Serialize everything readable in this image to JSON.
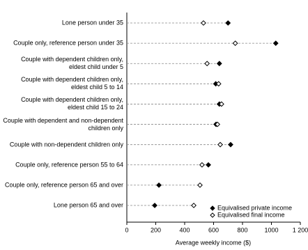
{
  "chart_data": {
    "type": "dot",
    "xlabel": "Average weekly income ($)",
    "categories": [
      "Lone person under 35",
      "Couple only, reference person under 35",
      "Couple with dependent children only,\neldest child under 5",
      "Couple with dependent children only,\neldest child 5 to 14",
      "Couple with dependent children only,\neldest child 15 to 24",
      "Couple with dependent and non-dependent\nchildren only",
      "Couple with non-dependent children only",
      "Couple only, reference person 55 to 64",
      "Couple only, reference person 65 and over",
      "Lone person 65 and over"
    ],
    "series": [
      {
        "name": "Equivalised private income",
        "color": "#000000",
        "marker": "filled-diamond",
        "values": [
          700,
          1030,
          640,
          615,
          640,
          617,
          718,
          564,
          222,
          193
        ]
      },
      {
        "name": "Equivalised final income",
        "color": "#000000",
        "marker": "open-diamond",
        "values": [
          530,
          750,
          555,
          635,
          655,
          627,
          646,
          520,
          506,
          463
        ]
      }
    ],
    "xlim": [
      0,
      1200
    ],
    "xticks": [
      0,
      200,
      400,
      600,
      800,
      1000,
      {
        "value": 1200,
        "label": "1 200"
      }
    ],
    "legend_position": "lower right"
  }
}
